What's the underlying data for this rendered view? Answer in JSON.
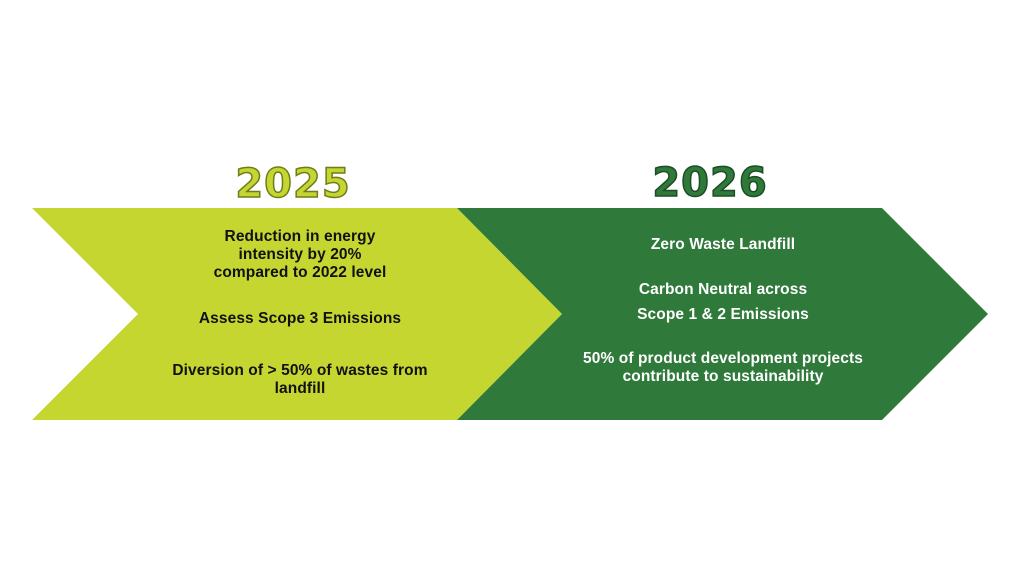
{
  "colors": {
    "left_arrow": "#c5d631",
    "right_arrow": "#2f7a3b",
    "background": "#ffffff"
  },
  "stages": [
    {
      "year": "2025",
      "items": [
        "Reduction in energy intensity by 20% compared to 2022 level",
        "Assess Scope 3 Emissions",
        "Diversion of > 50% of wastes from landfill"
      ],
      "lines": [
        [
          "Reduction in energy",
          "intensity by 20%",
          "compared to 2022 level"
        ],
        [
          "Assess Scope 3 Emissions"
        ],
        [
          "Diversion of > 50% of wastes from",
          "landfill"
        ]
      ]
    },
    {
      "year": "2026",
      "items": [
        "Zero Waste Landfill",
        "Carbon Neutral across Scope 1 & 2 Emissions",
        "50% of product development projects contribute to sustainability"
      ],
      "lines": [
        [
          "Zero Waste Landfill"
        ],
        [
          "Carbon Neutral across",
          "",
          "Scope 1 & 2 Emissions"
        ],
        [
          "50% of product development projects",
          "contribute to sustainability"
        ]
      ]
    }
  ]
}
